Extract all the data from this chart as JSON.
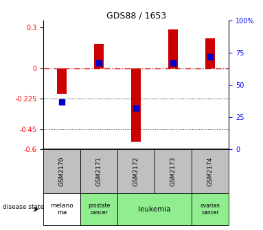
{
  "title": "GDS88 / 1653",
  "samples": [
    "GSM2170",
    "GSM2171",
    "GSM2172",
    "GSM2173",
    "GSM2174"
  ],
  "log_ratio": [
    -0.19,
    0.18,
    -0.54,
    0.285,
    0.22
  ],
  "percentile_rank": [
    37,
    67,
    32,
    67,
    72
  ],
  "disease_states": [
    "melanoma",
    "prostate cancer",
    "leukemia",
    "leukemia",
    "ovarian cancer"
  ],
  "disease_colors": {
    "melanoma": "#ffffff",
    "prostate cancer": "#90ee90",
    "leukemia": "#90ee90",
    "ovarian cancer": "#90ee90"
  },
  "ylim_left": [
    -0.6,
    0.35
  ],
  "ylim_right": [
    0,
    100
  ],
  "yticks_left": [
    -0.6,
    -0.45,
    -0.225,
    0.0,
    0.3
  ],
  "ytick_labels_left": [
    "-0.6",
    "-0.45",
    "-0.225",
    "0",
    "0.3"
  ],
  "yticks_right": [
    0,
    25,
    50,
    75,
    100
  ],
  "ytick_labels_right": [
    "0",
    "25",
    "50",
    "75",
    "100%"
  ],
  "bar_color": "#cc0000",
  "dot_color": "#0000cc",
  "zero_line_color": "#cc0000",
  "sample_header_bg": "#c0c0c0",
  "bar_width": 0.25,
  "dot_size": 35
}
